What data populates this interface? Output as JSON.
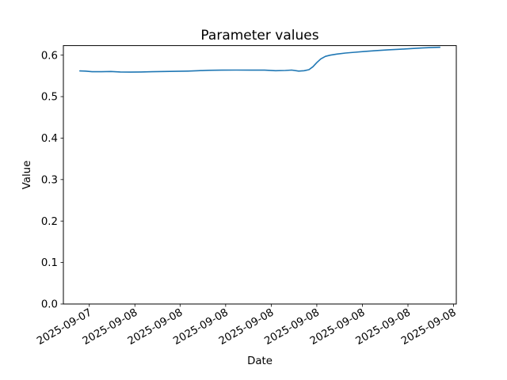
{
  "chart_data": {
    "type": "line",
    "title": "Parameter values",
    "xlabel": "Date",
    "ylabel": "Value",
    "ylim": [
      0.0,
      0.623
    ],
    "grid": false,
    "legend": "none",
    "background_color": "#ffffff",
    "axes_edge_color": "#000000",
    "y_tick_values": [
      0.0,
      0.1,
      0.2,
      0.3,
      0.4,
      0.5,
      0.6
    ],
    "y_tick_labels": [
      "0.0",
      "0.1",
      "0.2",
      "0.3",
      "0.4",
      "0.5",
      "0.6"
    ],
    "x_tick_labels": [
      "2025-09-07",
      "2025-09-08",
      "2025-09-08",
      "2025-09-08",
      "2025-09-08",
      "2025-09-08",
      "2025-09-08",
      "2025-09-08",
      "2025-09-08"
    ],
    "x_tick_positions": [
      0.066,
      0.182,
      0.297,
      0.413,
      0.529,
      0.645,
      0.761,
      0.877,
      0.993
    ],
    "x_tick_rotation_deg": 30,
    "series": [
      {
        "name": "Parameter",
        "color": "#1f77b4",
        "points": [
          [
            0.042,
            0.562
          ],
          [
            0.056,
            0.5615
          ],
          [
            0.073,
            0.56
          ],
          [
            0.097,
            0.56
          ],
          [
            0.121,
            0.5605
          ],
          [
            0.145,
            0.5595
          ],
          [
            0.171,
            0.559
          ],
          [
            0.198,
            0.5595
          ],
          [
            0.226,
            0.56
          ],
          [
            0.256,
            0.5605
          ],
          [
            0.286,
            0.561
          ],
          [
            0.317,
            0.5615
          ],
          [
            0.343,
            0.5625
          ],
          [
            0.369,
            0.5635
          ],
          [
            0.403,
            0.5638
          ],
          [
            0.44,
            0.564
          ],
          [
            0.476,
            0.5638
          ],
          [
            0.512,
            0.5638
          ],
          [
            0.54,
            0.5625
          ],
          [
            0.565,
            0.563
          ],
          [
            0.581,
            0.564
          ],
          [
            0.599,
            0.5615
          ],
          [
            0.613,
            0.5625
          ],
          [
            0.625,
            0.565
          ],
          [
            0.635,
            0.572
          ],
          [
            0.645,
            0.582
          ],
          [
            0.655,
            0.591
          ],
          [
            0.667,
            0.597
          ],
          [
            0.679,
            0.6
          ],
          [
            0.696,
            0.6025
          ],
          [
            0.718,
            0.605
          ],
          [
            0.742,
            0.607
          ],
          [
            0.768,
            0.609
          ],
          [
            0.796,
            0.611
          ],
          [
            0.827,
            0.6128
          ],
          [
            0.857,
            0.6143
          ],
          [
            0.887,
            0.616
          ],
          [
            0.913,
            0.6172
          ],
          [
            0.935,
            0.6183
          ],
          [
            0.958,
            0.619
          ]
        ]
      }
    ]
  }
}
